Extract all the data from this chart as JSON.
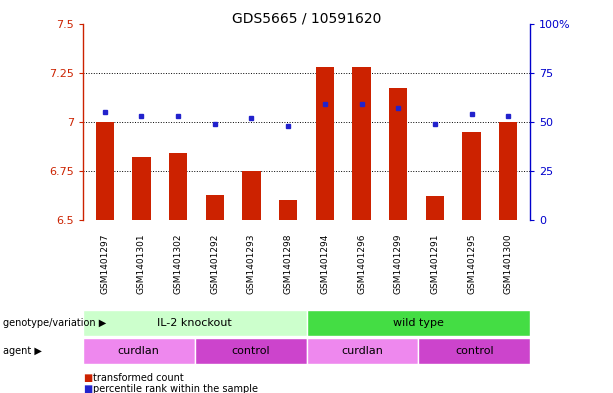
{
  "title": "GDS5665 / 10591620",
  "samples": [
    "GSM1401297",
    "GSM1401301",
    "GSM1401302",
    "GSM1401292",
    "GSM1401293",
    "GSM1401298",
    "GSM1401294",
    "GSM1401296",
    "GSM1401299",
    "GSM1401291",
    "GSM1401295",
    "GSM1401300"
  ],
  "bar_values": [
    7.0,
    6.82,
    6.84,
    6.63,
    6.75,
    6.6,
    7.28,
    7.28,
    7.17,
    6.62,
    6.95,
    7.0
  ],
  "bar_bottom": 6.5,
  "dot_values": [
    7.05,
    7.03,
    7.03,
    6.99,
    7.02,
    6.98,
    7.09,
    7.09,
    7.07,
    6.99,
    7.04,
    7.03
  ],
  "ylim_left": [
    6.5,
    7.5
  ],
  "ylim_right": [
    0,
    100
  ],
  "yticks_left": [
    6.5,
    6.75,
    7.0,
    7.25,
    7.5
  ],
  "yticks_right": [
    0,
    25,
    50,
    75,
    100
  ],
  "ytick_labels_left": [
    "6.5",
    "6.75",
    "7",
    "7.25",
    "7.5"
  ],
  "ytick_labels_right": [
    "0",
    "25",
    "50",
    "75",
    "100%"
  ],
  "hlines": [
    6.75,
    7.0,
    7.25
  ],
  "bar_color": "#cc2200",
  "dot_color": "#2222cc",
  "genotype_groups": [
    {
      "label": "IL-2 knockout",
      "start": 0,
      "end": 6,
      "color": "#ccffcc"
    },
    {
      "label": "wild type",
      "start": 6,
      "end": 12,
      "color": "#44dd44"
    }
  ],
  "agent_groups": [
    {
      "label": "curdlan",
      "start": 0,
      "end": 3,
      "color": "#ee88ee"
    },
    {
      "label": "control",
      "start": 3,
      "end": 6,
      "color": "#cc44cc"
    },
    {
      "label": "curdlan",
      "start": 6,
      "end": 9,
      "color": "#ee88ee"
    },
    {
      "label": "control",
      "start": 9,
      "end": 12,
      "color": "#cc44cc"
    }
  ],
  "legend_items": [
    {
      "label": "transformed count",
      "color": "#cc2200"
    },
    {
      "label": "percentile rank within the sample",
      "color": "#2222cc"
    }
  ],
  "left_axis_color": "#cc2200",
  "right_axis_color": "#0000cc",
  "genotype_label": "genotype/variation",
  "agent_label": "agent",
  "bg_color": "#ffffff",
  "tick_area_color": "#cccccc"
}
